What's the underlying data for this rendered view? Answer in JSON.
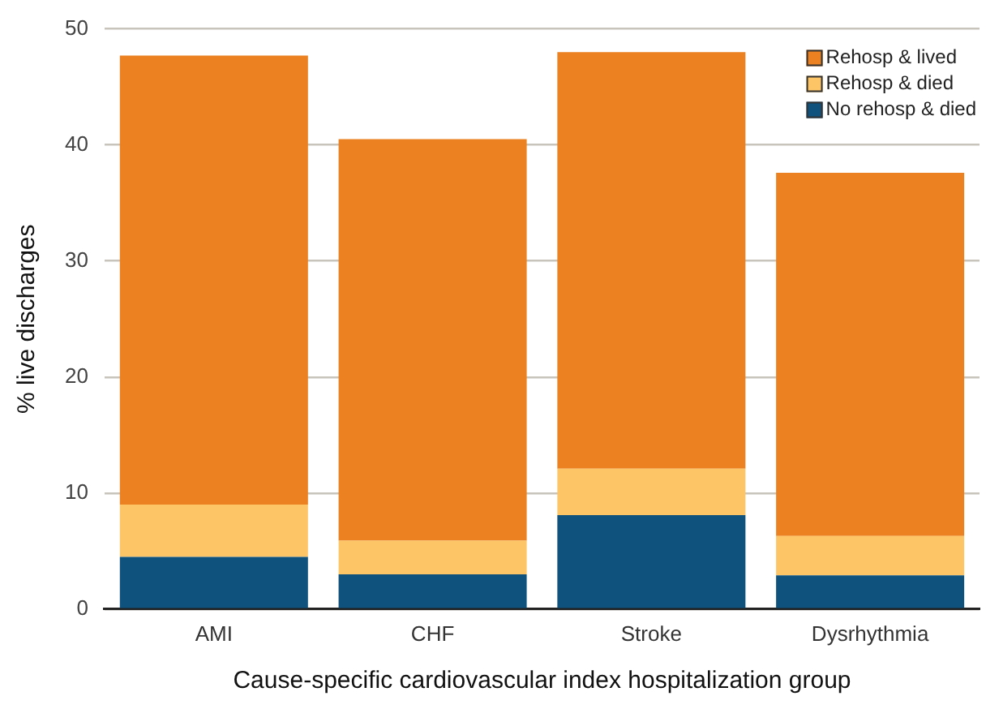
{
  "chart_data": {
    "type": "bar",
    "stacked": true,
    "xlabel": "Cause-specific cardiovascular index hospitalization group",
    "ylabel": "% live discharges",
    "categories": [
      "AMI",
      "CHF",
      "Stroke",
      "Dysrhythmia"
    ],
    "series": [
      {
        "name": "No rehosp & died",
        "color": "#0f527e",
        "values": [
          4.5,
          3.0,
          8.1,
          2.9
        ]
      },
      {
        "name": "Rehosp & died",
        "color": "#fdc566",
        "values": [
          4.5,
          2.9,
          4.0,
          3.4
        ]
      },
      {
        "name": "Rehosp & lived",
        "color": "#eb8120",
        "values": [
          38.7,
          34.6,
          35.9,
          31.3
        ]
      }
    ],
    "ylim": [
      0,
      50
    ],
    "yticks": [
      0,
      10,
      20,
      30,
      40,
      50
    ],
    "grid": "y",
    "legend": "top right"
  }
}
